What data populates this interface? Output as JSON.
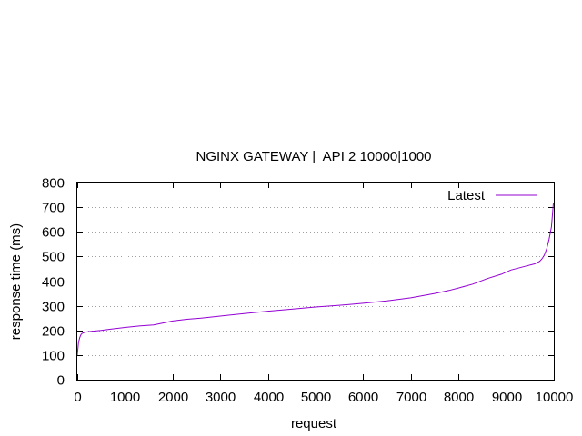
{
  "chart_data": {
    "type": "line",
    "title": "NGINX GATEWAY |  API 2 10000|1000",
    "xlabel": "request",
    "ylabel": "response time (ms)",
    "xlim": [
      0,
      10000
    ],
    "ylim": [
      0,
      800
    ],
    "xticks": [
      0,
      1000,
      2000,
      3000,
      4000,
      5000,
      6000,
      7000,
      8000,
      9000,
      10000
    ],
    "yticks": [
      0,
      100,
      200,
      300,
      400,
      500,
      600,
      700,
      800
    ],
    "grid": "horizontal dotted",
    "legend_position": "top-right",
    "colors": {
      "series": "#9400d3",
      "grid": "#a0a0a0",
      "axis": "#000000"
    },
    "series": [
      {
        "name": "Latest",
        "x": [
          0,
          25,
          50,
          75,
          100,
          150,
          200,
          300,
          500,
          700,
          1000,
          1300,
          1600,
          1800,
          2000,
          2300,
          2600,
          3000,
          3500,
          4000,
          4500,
          5000,
          5500,
          6000,
          6500,
          7000,
          7500,
          7800,
          8000,
          8300,
          8600,
          8900,
          9100,
          9400,
          9600,
          9700,
          9750,
          9800,
          9850,
          9900,
          9950,
          9990
        ],
        "values": [
          100,
          150,
          170,
          182,
          188,
          192,
          194,
          196,
          200,
          205,
          212,
          218,
          222,
          230,
          238,
          245,
          250,
          258,
          268,
          278,
          286,
          295,
          302,
          310,
          320,
          332,
          350,
          362,
          372,
          388,
          410,
          428,
          445,
          460,
          470,
          480,
          490,
          505,
          530,
          570,
          620,
          715
        ]
      }
    ]
  }
}
